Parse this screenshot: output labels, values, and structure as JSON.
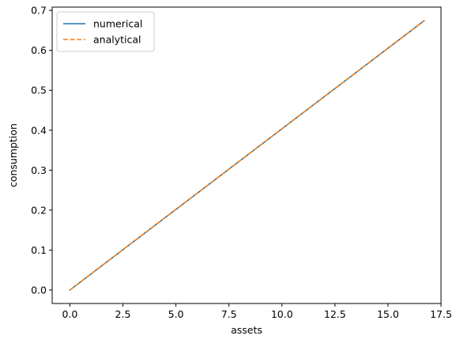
{
  "chart_data": {
    "type": "line",
    "xlabel": "assets",
    "ylabel": "consumption",
    "xlim": [
      -0.835,
      17.5
    ],
    "ylim": [
      -0.0337,
      0.7082
    ],
    "xticks": [
      0.0,
      2.5,
      5.0,
      7.5,
      10.0,
      12.5,
      15.0,
      17.5
    ],
    "xtick_labels": [
      "0.0",
      "2.5",
      "5.0",
      "7.5",
      "10.0",
      "12.5",
      "15.0",
      "17.5"
    ],
    "yticks": [
      0.0,
      0.1,
      0.2,
      0.3,
      0.4,
      0.5,
      0.6,
      0.7
    ],
    "ytick_labels": [
      "0.0",
      "0.1",
      "0.2",
      "0.3",
      "0.4",
      "0.5",
      "0.6",
      "0.7"
    ],
    "grid": false,
    "legend": "top-left",
    "series": [
      {
        "name": "numerical",
        "color": "#1f77b4",
        "style": "solid",
        "x": [
          0.0,
          16.7
        ],
        "y": [
          0.0,
          0.674
        ]
      },
      {
        "name": "analytical",
        "color": "#ff7f0e",
        "style": "dashed",
        "x": [
          0.0,
          16.7
        ],
        "y": [
          0.0,
          0.674
        ]
      }
    ]
  }
}
